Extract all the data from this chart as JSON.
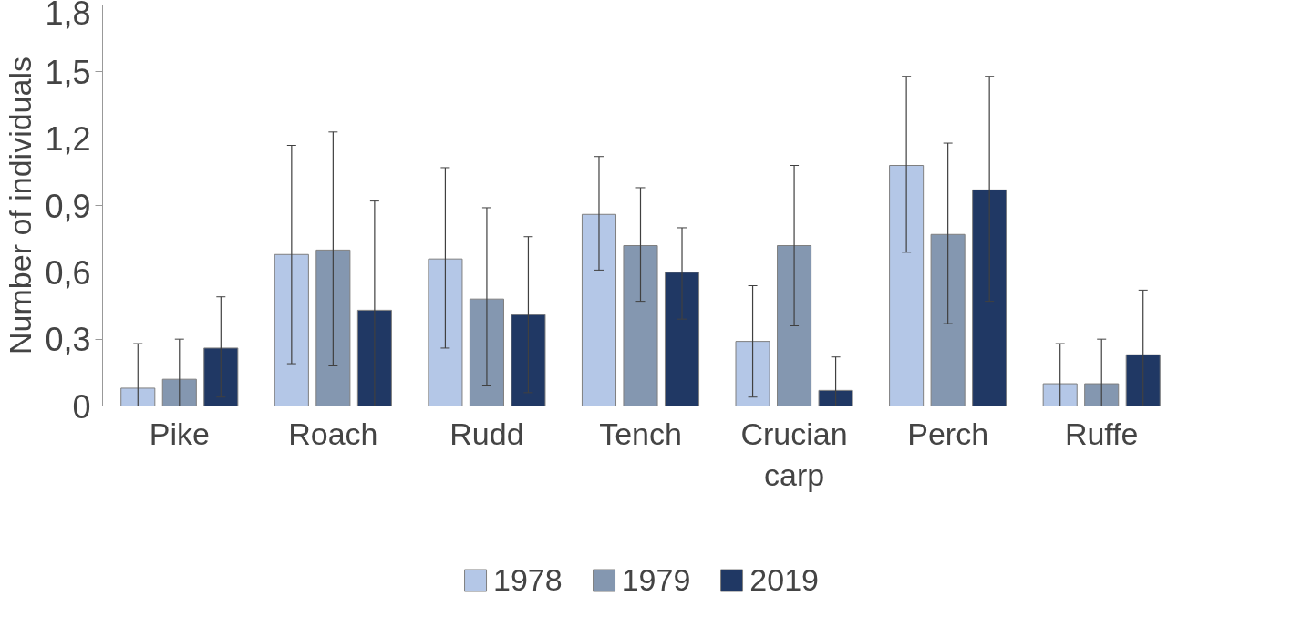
{
  "chart_data": {
    "type": "bar",
    "ylabel": "Number of individuals",
    "categories": [
      "Pike",
      "Roach",
      "Rudd",
      "Tench",
      "Crucian carp",
      "Perch",
      "Ruffe"
    ],
    "ylim": [
      0,
      1.8
    ],
    "yticks": [
      {
        "value": 0,
        "label": "0"
      },
      {
        "value": 0.3,
        "label": "0,3"
      },
      {
        "value": 0.6,
        "label": "0,6"
      },
      {
        "value": 0.9,
        "label": "0,9"
      },
      {
        "value": 1.2,
        "label": "1,2"
      },
      {
        "value": 1.5,
        "label": "1,5"
      },
      {
        "value": 1.8,
        "label": "1,8"
      }
    ],
    "grid": false,
    "legend": "bottom",
    "series": [
      {
        "name": "1978",
        "color": "#b4c7e7",
        "values": [
          0.08,
          0.68,
          0.66,
          0.86,
          0.29,
          1.08,
          0.1
        ],
        "errors": [
          [
            0,
            0.28
          ],
          [
            0.19,
            1.17
          ],
          [
            0.26,
            1.07
          ],
          [
            0.61,
            1.12
          ],
          [
            0.04,
            0.54
          ],
          [
            0.69,
            1.48
          ],
          [
            0,
            0.28
          ]
        ]
      },
      {
        "name": "1979",
        "color": "#8497b0",
        "values": [
          0.12,
          0.7,
          0.48,
          0.72,
          0.72,
          0.77,
          0.1
        ],
        "errors": [
          [
            0,
            0.3
          ],
          [
            0.18,
            1.23
          ],
          [
            0.09,
            0.89
          ],
          [
            0.47,
            0.98
          ],
          [
            0.36,
            1.08
          ],
          [
            0.37,
            1.18
          ],
          [
            0,
            0.3
          ]
        ]
      },
      {
        "name": "2019",
        "color": "#203864",
        "values": [
          0.26,
          0.43,
          0.41,
          0.6,
          0.07,
          0.97,
          0.23
        ],
        "errors": [
          [
            0.04,
            0.49
          ],
          [
            0,
            0.92
          ],
          [
            0.06,
            0.76
          ],
          [
            0.39,
            0.8
          ],
          [
            0,
            0.22
          ],
          [
            0.47,
            1.48
          ],
          [
            0,
            0.52
          ]
        ]
      }
    ]
  }
}
